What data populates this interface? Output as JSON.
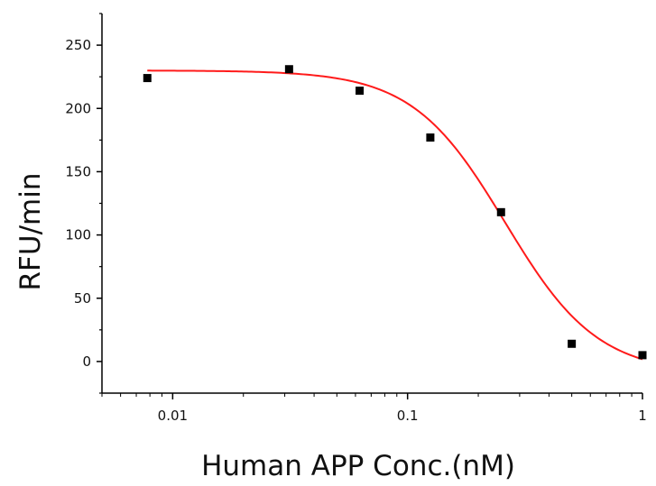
{
  "chart_data": {
    "type": "scatter",
    "title": "",
    "xlabel": "Human APP Conc.(nM)",
    "ylabel": "RFU/min",
    "x_scale": "log",
    "xlim": [
      0.005,
      1.0
    ],
    "ylim": [
      -25,
      275
    ],
    "x_ticks": [
      {
        "value": 0.01,
        "label": "0.01"
      },
      {
        "value": 0.1,
        "label": "0.1"
      },
      {
        "value": 1,
        "label": "1"
      }
    ],
    "y_ticks": [
      {
        "value": 0,
        "label": "0"
      },
      {
        "value": 50,
        "label": "50"
      },
      {
        "value": 100,
        "label": "100"
      },
      {
        "value": 150,
        "label": "150"
      },
      {
        "value": 200,
        "label": "200"
      },
      {
        "value": 250,
        "label": "250"
      }
    ],
    "grid": false,
    "legend": "none",
    "series": [
      {
        "type": "scatter",
        "marker": "square",
        "color": "#000000",
        "x": [
          0.0078,
          0.0313,
          0.0625,
          0.125,
          0.25,
          0.5,
          1.0
        ],
        "y": [
          224,
          231,
          214,
          177,
          118,
          14,
          5
        ]
      },
      {
        "type": "line",
        "fit": "four-parameter logistic",
        "color": "#ff1a1a",
        "top": 230,
        "bottom": -10,
        "ic50": 0.26,
        "hill": 2.2,
        "x_range": [
          0.0078,
          1.0
        ]
      }
    ]
  }
}
